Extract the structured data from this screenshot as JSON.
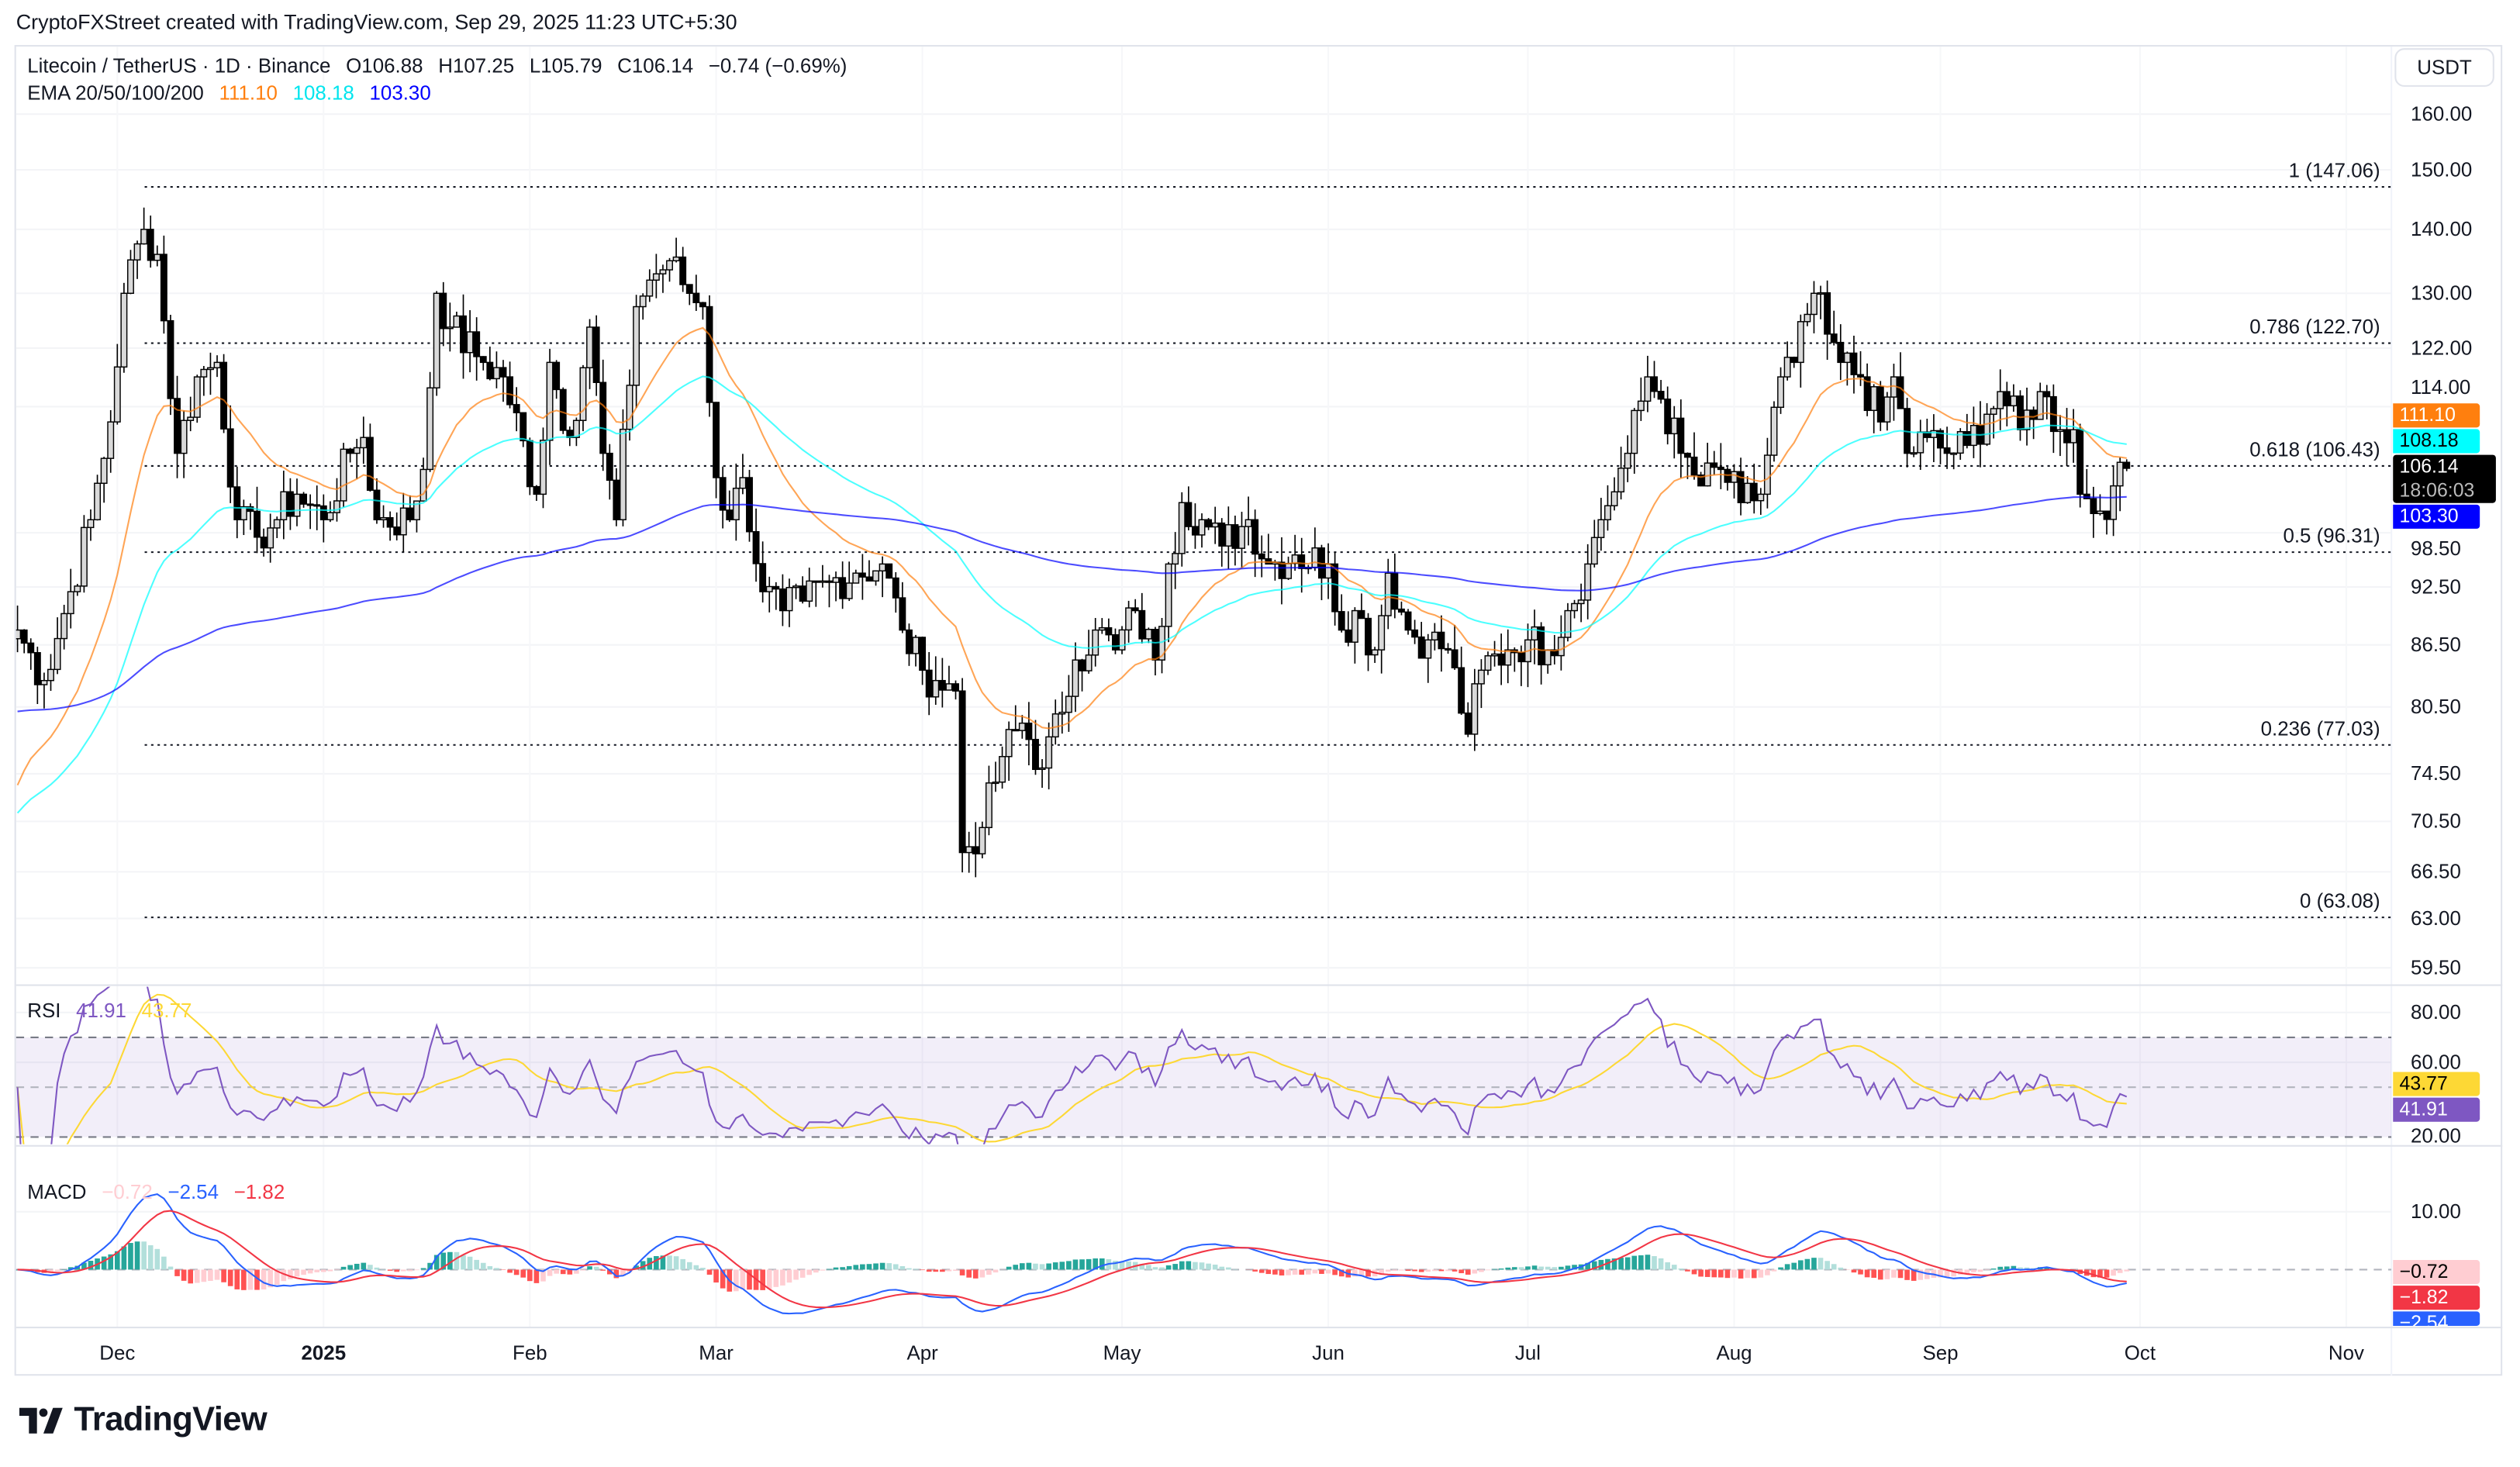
{
  "credit": "CryptoFXStreet created with TradingView.com, Sep 29, 2025 11:23 UTC+5:30",
  "legend": {
    "symbol": "Litecoin / TetherUS · 1D · Binance",
    "open": "O106.88",
    "high": "H107.25",
    "low": "L105.79",
    "close": "C106.14",
    "change": "−0.74 (−0.69%)",
    "ema_label": "EMA 20/50/100/200",
    "ema_values": [
      "111.10",
      "108.18",
      "103.30"
    ]
  },
  "currency_button": "USDT",
  "price_axis": {
    "scale": "log",
    "ticks": [
      "160.00",
      "150.00",
      "140.00",
      "130.00",
      "122.00",
      "114.00",
      "98.50",
      "92.50",
      "86.50",
      "80.50",
      "74.50",
      "70.50",
      "66.50",
      "63.00",
      "59.50"
    ]
  },
  "price_tags": {
    "ema20": "111.10",
    "ema50": "108.18",
    "last_price": "106.14",
    "countdown": "18:06:03",
    "ema200": "103.30"
  },
  "fib_levels": [
    {
      "label": "1 (147.06)",
      "price": 147.06
    },
    {
      "label": "0.786 (122.70)",
      "price": 122.7
    },
    {
      "label": "0.618 (106.43)",
      "price": 106.43
    },
    {
      "label": "0.5 (96.31)",
      "price": 96.31
    },
    {
      "label": "0.236 (77.03)",
      "price": 77.03
    },
    {
      "label": "0 (63.08)",
      "price": 63.08
    }
  ],
  "rsi": {
    "label": "RSI",
    "value": "41.91",
    "ma_value": "43.77",
    "ticks": [
      "80.00",
      "60.00",
      "20.00"
    ],
    "upper_band": 70,
    "middle_band": 50,
    "lower_band": 30
  },
  "macd": {
    "label": "MACD",
    "histogram": "−0.72",
    "macd": "−2.54",
    "signal": "−1.82",
    "ticks": [
      "10.00"
    ]
  },
  "time_axis": [
    {
      "label": "Dec",
      "date": "2024-12-01"
    },
    {
      "label": "2025",
      "date": "2025-01-01"
    },
    {
      "label": "Feb",
      "date": "2025-02-01"
    },
    {
      "label": "Mar",
      "date": "2025-03-01"
    },
    {
      "label": "Apr",
      "date": "2025-04-01"
    },
    {
      "label": "May",
      "date": "2025-05-01"
    },
    {
      "label": "Jun",
      "date": "2025-06-01"
    },
    {
      "label": "Jul",
      "date": "2025-07-01"
    },
    {
      "label": "Aug",
      "date": "2025-08-01"
    },
    {
      "label": "Sep",
      "date": "2025-09-01"
    },
    {
      "label": "Oct",
      "date": "2025-10-01"
    },
    {
      "label": "Nov",
      "date": "2025-11-01"
    }
  ],
  "logo": "TradingView",
  "colors": {
    "ema20": "#ff7f0e",
    "ema50": "#00ffff",
    "ema200": "#0000ff",
    "up_candle": "#d9d9d9",
    "down_candle": "#000000",
    "rsi": "#7e57c2",
    "rsi_ma": "#fdd835",
    "macd": "#2962ff",
    "signal": "#f23645",
    "hist_up": "#26a69a",
    "hist_up_weak": "#b2dfdb",
    "hist_down": "#ff5252",
    "hist_down_weak": "#ffcdd2"
  },
  "chart_data": {
    "type": "candlestick",
    "timeframe": "1D",
    "y_scale": "log",
    "ylim": [
      59.5,
      160
    ],
    "last_candle": {
      "date": "2025-09-29",
      "open": 106.88,
      "high": 107.25,
      "low": 105.79,
      "close": 106.14
    },
    "approx_closes": [
      [
        "2024-11-16",
        88
      ],
      [
        "2024-11-20",
        83
      ],
      [
        "2024-11-24",
        92
      ],
      [
        "2024-11-27",
        100
      ],
      [
        "2024-11-30",
        112
      ],
      [
        "2024-12-02",
        130
      ],
      [
        "2024-12-05",
        140
      ],
      [
        "2024-12-07",
        136
      ],
      [
        "2024-12-10",
        108
      ],
      [
        "2024-12-13",
        118
      ],
      [
        "2024-12-16",
        120
      ],
      [
        "2024-12-19",
        100
      ],
      [
        "2024-12-22",
        98
      ],
      [
        "2024-12-25",
        100
      ],
      [
        "2024-12-28",
        103
      ],
      [
        "2025-01-01",
        100
      ],
      [
        "2025-01-05",
        108
      ],
      [
        "2025-01-07",
        110
      ],
      [
        "2025-01-09",
        100
      ],
      [
        "2025-01-14",
        100
      ],
      [
        "2025-01-16",
        106
      ],
      [
        "2025-01-18",
        130
      ],
      [
        "2025-01-20",
        125
      ],
      [
        "2025-01-25",
        120
      ],
      [
        "2025-01-28",
        118
      ],
      [
        "2025-02-02",
        103
      ],
      [
        "2025-02-04",
        120
      ],
      [
        "2025-02-07",
        110
      ],
      [
        "2025-02-10",
        125
      ],
      [
        "2025-02-12",
        108
      ],
      [
        "2025-02-14",
        100
      ],
      [
        "2025-02-17",
        128
      ],
      [
        "2025-02-19",
        132
      ],
      [
        "2025-02-22",
        135
      ],
      [
        "2025-02-25",
        130
      ],
      [
        "2025-02-27",
        128
      ],
      [
        "2025-03-01",
        105
      ],
      [
        "2025-03-03",
        100
      ],
      [
        "2025-03-05",
        105
      ],
      [
        "2025-03-08",
        92
      ],
      [
        "2025-03-11",
        90
      ],
      [
        "2025-03-14",
        91
      ],
      [
        "2025-03-18",
        93
      ],
      [
        "2025-03-22",
        94
      ],
      [
        "2025-03-26",
        95
      ],
      [
        "2025-03-29",
        88
      ],
      [
        "2025-04-01",
        84
      ],
      [
        "2025-04-03",
        83
      ],
      [
        "2025-04-06",
        82
      ],
      [
        "2025-04-07",
        68
      ],
      [
        "2025-04-10",
        70
      ],
      [
        "2025-04-13",
        76
      ],
      [
        "2025-04-16",
        79
      ],
      [
        "2025-04-19",
        75
      ],
      [
        "2025-04-22",
        80
      ],
      [
        "2025-04-24",
        85
      ],
      [
        "2025-04-27",
        88
      ],
      [
        "2025-04-30",
        86
      ],
      [
        "2025-05-03",
        90
      ],
      [
        "2025-05-06",
        85
      ],
      [
        "2025-05-08",
        95
      ],
      [
        "2025-05-10",
        102
      ],
      [
        "2025-05-13",
        100
      ],
      [
        "2025-05-16",
        97
      ],
      [
        "2025-05-20",
        100
      ],
      [
        "2025-05-23",
        95
      ],
      [
        "2025-05-27",
        96
      ],
      [
        "2025-06-01",
        95
      ],
      [
        "2025-06-03",
        88
      ],
      [
        "2025-06-05",
        90
      ],
      [
        "2025-06-08",
        86
      ],
      [
        "2025-06-10",
        94
      ],
      [
        "2025-06-13",
        88
      ],
      [
        "2025-06-16",
        87
      ],
      [
        "2025-06-19",
        86
      ],
      [
        "2025-06-22",
        78
      ],
      [
        "2025-06-24",
        84
      ],
      [
        "2025-06-28",
        86
      ],
      [
        "2025-07-01",
        87
      ],
      [
        "2025-07-04",
        86
      ],
      [
        "2025-07-07",
        90
      ],
      [
        "2025-07-10",
        95
      ],
      [
        "2025-07-12",
        100
      ],
      [
        "2025-07-16",
        108
      ],
      [
        "2025-07-19",
        118
      ],
      [
        "2025-07-21",
        115
      ],
      [
        "2025-07-24",
        108
      ],
      [
        "2025-07-27",
        104
      ],
      [
        "2025-07-30",
        106
      ],
      [
        "2025-08-02",
        102
      ],
      [
        "2025-08-05",
        103
      ],
      [
        "2025-08-08",
        118
      ],
      [
        "2025-08-10",
        120
      ],
      [
        "2025-08-13",
        130
      ],
      [
        "2025-08-15",
        124
      ],
      [
        "2025-08-17",
        120
      ],
      [
        "2025-08-20",
        118
      ],
      [
        "2025-08-23",
        112
      ],
      [
        "2025-08-25",
        118
      ],
      [
        "2025-08-27",
        108
      ],
      [
        "2025-08-30",
        110
      ],
      [
        "2025-09-02",
        108
      ],
      [
        "2025-09-05",
        109
      ],
      [
        "2025-09-08",
        113
      ],
      [
        "2025-09-10",
        116
      ],
      [
        "2025-09-13",
        111
      ],
      [
        "2025-09-16",
        116
      ],
      [
        "2025-09-19",
        111
      ],
      [
        "2025-09-21",
        111
      ],
      [
        "2025-09-22",
        103
      ],
      [
        "2025-09-25",
        101
      ],
      [
        "2025-09-27",
        104
      ],
      [
        "2025-09-28",
        106.88
      ],
      [
        "2025-09-29",
        106.14
      ]
    ]
  }
}
